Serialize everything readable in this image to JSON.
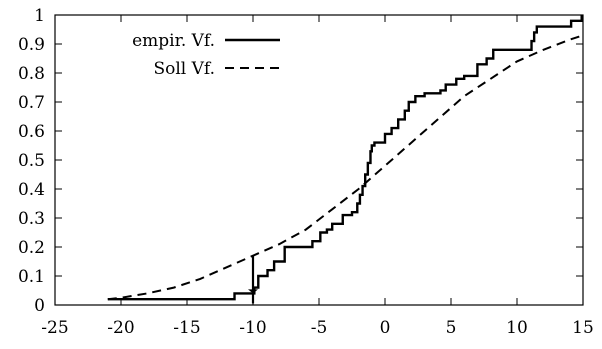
{
  "chart_data": {
    "type": "line",
    "title": "",
    "xlabel": "",
    "ylabel": "",
    "xlim": [
      -25,
      15
    ],
    "ylim": [
      0,
      1
    ],
    "x_ticks": [
      -25,
      -20,
      -15,
      -10,
      -5,
      0,
      5,
      10,
      15
    ],
    "y_ticks": [
      0,
      0.1,
      0.2,
      0.3,
      0.4,
      0.5,
      0.6,
      0.7,
      0.8,
      0.9,
      1
    ],
    "x_tick_labels": [
      "-25",
      "-20",
      "-15",
      "-10",
      "-5",
      "0",
      "5",
      "10",
      "15"
    ],
    "y_tick_labels": [
      "0",
      "0.1",
      "0.2",
      "0.3",
      "0.4",
      "0.5",
      "0.6",
      "0.7",
      "0.8",
      "0.9",
      "1"
    ],
    "legend_position": "top-left",
    "series": [
      {
        "name": "empir. Vf.",
        "style": "solid-step",
        "x": [
          -21,
          -11.4,
          -9.9,
          -9.6,
          -8.9,
          -8.4,
          -7.6,
          -5.5,
          -4.9,
          -4.4,
          -4.0,
          -3.2,
          -2.5,
          -2.1,
          -1.9,
          -1.7,
          -1.5,
          -1.3,
          -1.1,
          -1.0,
          -0.9,
          -0.8,
          -0.7,
          0.0,
          0.5,
          1.0,
          1.5,
          1.8,
          2.3,
          3.0,
          4.2,
          4.6,
          5.4,
          6.0,
          7.0,
          7.7,
          8.2,
          11.1,
          11.3,
          11.5,
          14.1,
          14.9
        ],
        "y": [
          0.02,
          0.04,
          0.06,
          0.1,
          0.12,
          0.15,
          0.2,
          0.22,
          0.25,
          0.26,
          0.28,
          0.31,
          0.32,
          0.35,
          0.38,
          0.41,
          0.45,
          0.49,
          0.53,
          0.55,
          0.55,
          0.56,
          0.56,
          0.59,
          0.61,
          0.64,
          0.67,
          0.7,
          0.72,
          0.73,
          0.74,
          0.76,
          0.78,
          0.79,
          0.83,
          0.85,
          0.88,
          0.91,
          0.94,
          0.96,
          0.98,
          1.0
        ]
      },
      {
        "name": "Soll Vf.",
        "style": "dashed",
        "x": [
          -21,
          -20,
          -18,
          -16,
          -14,
          -12,
          -10,
          -8,
          -6,
          -4,
          -2,
          0,
          2,
          4,
          6,
          8,
          10,
          12,
          14,
          15
        ],
        "y": [
          0.02,
          0.025,
          0.04,
          0.06,
          0.09,
          0.13,
          0.17,
          0.21,
          0.26,
          0.33,
          0.4,
          0.48,
          0.56,
          0.64,
          0.72,
          0.78,
          0.84,
          0.88,
          0.915,
          0.93
        ]
      }
    ],
    "annotations": [
      {
        "type": "arrow",
        "x": -10,
        "y_from": 0.17,
        "y_to": 0.04
      }
    ]
  }
}
